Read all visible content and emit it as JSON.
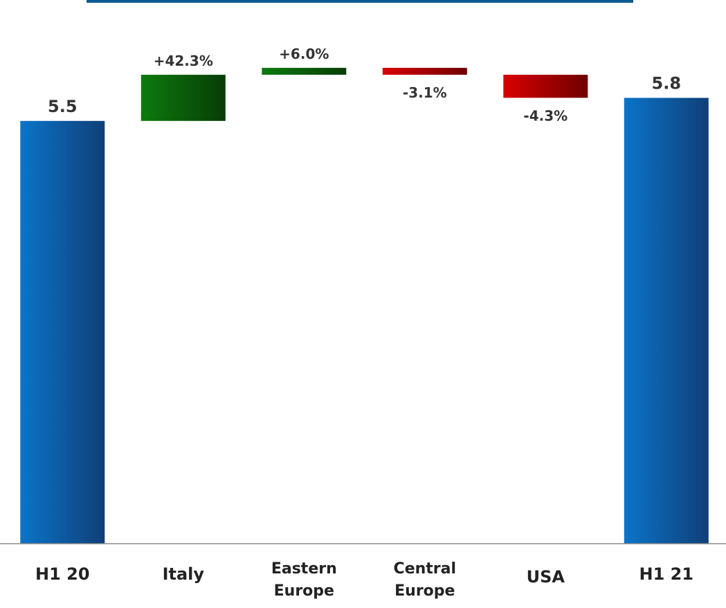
{
  "chart_data": {
    "type": "bar",
    "subtype": "waterfall",
    "categories": [
      [
        "H1 20"
      ],
      [
        "Italy"
      ],
      [
        "Eastern",
        "Europe"
      ],
      [
        "Central",
        "Europe"
      ],
      [
        "USA"
      ],
      [
        "H1 21"
      ]
    ],
    "steps": [
      {
        "kind": "total",
        "value": 5.5,
        "label": "5.5"
      },
      {
        "kind": "increase",
        "label": "+42.3%"
      },
      {
        "kind": "increase",
        "label": "+6.0%"
      },
      {
        "kind": "decrease",
        "label": "-3.1%"
      },
      {
        "kind": "decrease",
        "label": "-4.3%"
      },
      {
        "kind": "total",
        "value": 5.8,
        "label": "5.8"
      }
    ],
    "levels": [
      {
        "start": 0,
        "end": 5.5
      },
      {
        "start": 5.5,
        "end": 6.1
      },
      {
        "start": 6.1,
        "end": 6.19
      },
      {
        "start": 6.19,
        "end": 6.1
      },
      {
        "start": 6.1,
        "end": 5.8
      },
      {
        "start": 0,
        "end": 5.8
      }
    ],
    "ylim": [
      0,
      6.2
    ],
    "colors": {
      "total": [
        "#0b74c9",
        "#0f3f78"
      ],
      "increase": [
        "#0d7a0d",
        "#073d07"
      ],
      "decrease": [
        "#d90000",
        "#6e0000"
      ],
      "header_line": "#0b5a96",
      "axis": "#888888"
    }
  }
}
